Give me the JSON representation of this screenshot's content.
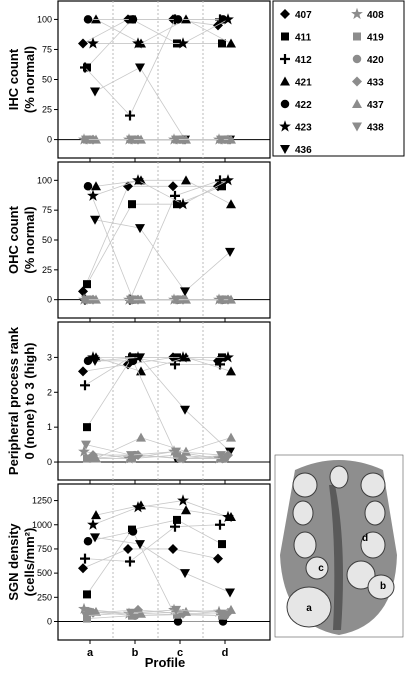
{
  "chart_data": {
    "type": "scatter",
    "xlabel": "Profile",
    "categories": [
      "a",
      "b",
      "c",
      "d"
    ],
    "legend": {
      "placement": "top-right",
      "entries": [
        {
          "id": "407",
          "marker": "diamond",
          "color": "#000000"
        },
        {
          "id": "408",
          "marker": "star",
          "color": "#8c8c8c"
        },
        {
          "id": "411",
          "marker": "square",
          "color": "#000000"
        },
        {
          "id": "419",
          "marker": "square",
          "color": "#8c8c8c"
        },
        {
          "id": "412",
          "marker": "plus",
          "color": "#000000"
        },
        {
          "id": "420",
          "marker": "circle",
          "color": "#8c8c8c"
        },
        {
          "id": "421",
          "marker": "triangle-up",
          "color": "#000000"
        },
        {
          "id": "433",
          "marker": "diamond",
          "color": "#8c8c8c"
        },
        {
          "id": "422",
          "marker": "circle",
          "color": "#000000"
        },
        {
          "id": "437",
          "marker": "triangle-up",
          "color": "#8c8c8c"
        },
        {
          "id": "423",
          "marker": "star",
          "color": "#000000"
        },
        {
          "id": "438",
          "marker": "triangle-down",
          "color": "#8c8c8c"
        },
        {
          "id": "436",
          "marker": "triangle-down",
          "color": "#000000"
        }
      ]
    },
    "panels": [
      {
        "ylabel_line1": "IHC count",
        "ylabel_line2": "(% normal)",
        "ylim": [
          -12,
          112
        ],
        "yticks": [
          0,
          25,
          50,
          75,
          100
        ],
        "tick_labels": [
          "0",
          "25",
          "50",
          "75",
          "100"
        ],
        "series": [
          {
            "id": "407",
            "values": [
              80,
              100,
              100,
              95
            ]
          },
          {
            "id": "411",
            "values": [
              60,
              100,
              80,
              80
            ]
          },
          {
            "id": "412",
            "values": [
              60,
              20,
              100,
              100
            ]
          },
          {
            "id": "421",
            "values": [
              100,
              80,
              100,
              80
            ]
          },
          {
            "id": "422",
            "values": [
              100,
              100,
              100,
              100
            ]
          },
          {
            "id": "423",
            "values": [
              80,
              80,
              80,
              100
            ]
          },
          {
            "id": "436",
            "values": [
              40,
              60,
              0,
              0
            ]
          },
          {
            "id": "408",
            "values": [
              0,
              0,
              0,
              0
            ]
          },
          {
            "id": "419",
            "values": [
              0,
              0,
              0,
              0
            ]
          },
          {
            "id": "420",
            "values": [
              0,
              0,
              0,
              0
            ]
          },
          {
            "id": "433",
            "values": [
              0,
              0,
              0,
              0
            ]
          },
          {
            "id": "437",
            "values": [
              0,
              0,
              0,
              0
            ]
          },
          {
            "id": "438",
            "values": [
              0,
              0,
              0,
              0
            ]
          }
        ]
      },
      {
        "ylabel_line1": "OHC count",
        "ylabel_line2": "(% normal)",
        "ylim": [
          -12,
          112
        ],
        "yticks": [
          0,
          25,
          50,
          75,
          100
        ],
        "tick_labels": [
          "0",
          "25",
          "50",
          "75",
          "100"
        ],
        "series": [
          {
            "id": "407",
            "values": [
              7,
              95,
              95,
              95
            ]
          },
          {
            "id": "411",
            "values": [
              13,
              80,
              80,
              95
            ]
          },
          {
            "id": "412",
            "values": [
              0,
              0,
              87,
              100
            ]
          },
          {
            "id": "421",
            "values": [
              95,
              100,
              100,
              80
            ]
          },
          {
            "id": "422",
            "values": [
              95,
              0,
              0,
              0
            ]
          },
          {
            "id": "423",
            "values": [
              87,
              100,
              80,
              100
            ]
          },
          {
            "id": "436",
            "values": [
              67,
              60,
              7,
              40
            ]
          },
          {
            "id": "408",
            "values": [
              0,
              0,
              0,
              0
            ]
          },
          {
            "id": "419",
            "values": [
              0,
              0,
              0,
              0
            ]
          },
          {
            "id": "420",
            "values": [
              0,
              0,
              0,
              0
            ]
          },
          {
            "id": "433",
            "values": [
              0,
              0,
              0,
              0
            ]
          },
          {
            "id": "437",
            "values": [
              0,
              0,
              0,
              0
            ]
          },
          {
            "id": "438",
            "values": [
              0,
              0,
              0,
              0
            ]
          }
        ]
      },
      {
        "ylabel_line1": "Peripheral process rank",
        "ylabel_line2": "0 (none) to 3 (high)",
        "ylim": [
          -0.4,
          3.9
        ],
        "yticks": [
          0,
          1,
          2,
          3
        ],
        "tick_labels": [
          "0",
          "1",
          "2",
          "3"
        ],
        "series": [
          {
            "id": "407",
            "values": [
              2.6,
              2.8,
              3.0,
              2.9
            ]
          },
          {
            "id": "411",
            "values": [
              1.0,
              3.0,
              3.0,
              3.0
            ]
          },
          {
            "id": "412",
            "values": [
              2.2,
              3.0,
              2.8,
              2.8
            ]
          },
          {
            "id": "421",
            "values": [
              3.0,
              2.6,
              3.0,
              2.6
            ]
          },
          {
            "id": "422",
            "values": [
              2.9,
              2.9,
              0.1,
              0.1
            ]
          },
          {
            "id": "423",
            "values": [
              3.0,
              3.0,
              3.0,
              3.0
            ]
          },
          {
            "id": "436",
            "values": [
              2.9,
              3.0,
              1.5,
              0.3
            ]
          },
          {
            "id": "408",
            "values": [
              0.3,
              0.1,
              0.3,
              0.1
            ]
          },
          {
            "id": "419",
            "values": [
              0.1,
              0.1,
              0.2,
              0.1
            ]
          },
          {
            "id": "420",
            "values": [
              0.1,
              0.2,
              0.1,
              0.1
            ]
          },
          {
            "id": "433",
            "values": [
              0.2,
              0.2,
              0.1,
              0.2
            ]
          },
          {
            "id": "437",
            "values": [
              0.1,
              0.7,
              0.3,
              0.7
            ]
          },
          {
            "id": "438",
            "values": [
              0.5,
              0.2,
              0.3,
              0.2
            ]
          }
        ]
      },
      {
        "ylabel_line1": "SGN density",
        "ylabel_line2": "(cells/mm²)",
        "ylim": [
          -150,
          1380
        ],
        "yticks": [
          0,
          250,
          500,
          750,
          1000,
          1250
        ],
        "tick_labels": [
          "0",
          "250",
          "500",
          "750",
          "1000",
          "1250"
        ],
        "series": [
          {
            "id": "407",
            "values": [
              550,
              750,
              750,
              650
            ]
          },
          {
            "id": "411",
            "values": [
              280,
              950,
              1050,
              800
            ]
          },
          {
            "id": "412",
            "values": [
              650,
              620,
              980,
              1000
            ]
          },
          {
            "id": "421",
            "values": [
              1100,
              1200,
              1150,
              1080
            ]
          },
          {
            "id": "422",
            "values": [
              830,
              930,
              0,
              0
            ]
          },
          {
            "id": "423",
            "values": [
              1000,
              1180,
              1250,
              1080
            ]
          },
          {
            "id": "436",
            "values": [
              870,
              800,
              500,
              300
            ]
          },
          {
            "id": "408",
            "values": [
              130,
              80,
              120,
              100
            ]
          },
          {
            "id": "419",
            "values": [
              30,
              60,
              70,
              60
            ]
          },
          {
            "id": "420",
            "values": [
              100,
              60,
              80,
              60
            ]
          },
          {
            "id": "433",
            "values": [
              90,
              120,
              80,
              90
            ]
          },
          {
            "id": "437",
            "values": [
              100,
              80,
              100,
              120
            ]
          },
          {
            "id": "438",
            "values": [
              60,
              90,
              120,
              80
            ]
          }
        ]
      }
    ]
  },
  "inset": {
    "labels": [
      "a",
      "b",
      "c",
      "d"
    ]
  }
}
